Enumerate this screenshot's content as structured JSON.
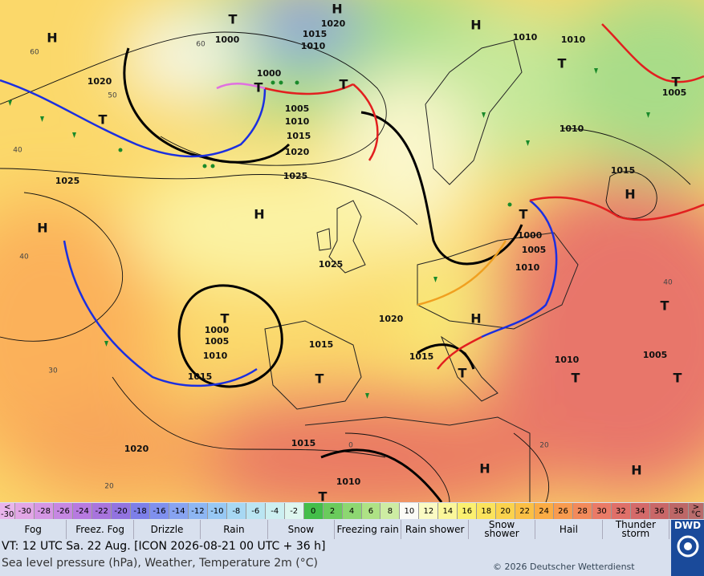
{
  "map": {
    "isobar_labels": [
      "1000",
      "1015",
      "1020",
      "1010",
      "1020",
      "1000",
      "1005",
      "1010",
      "1015",
      "1020",
      "1025",
      "1025",
      "1010",
      "1010",
      "1005",
      "1010",
      "1015",
      "1000",
      "1005",
      "1010",
      "1025",
      "1020",
      "1015",
      "1000",
      "1005",
      "1010",
      "1015",
      "1015",
      "1010",
      "1005",
      "1020",
      "1015",
      "1010"
    ],
    "high_centers": [
      "H",
      "H",
      "H",
      "H",
      "H",
      "H",
      "H",
      "H",
      "H"
    ],
    "low_centers": [
      "T",
      "T",
      "T",
      "T",
      "T",
      "T",
      "T",
      "T",
      "T",
      "T",
      "T",
      "T",
      "T",
      "T"
    ],
    "grid_labels": [
      "60",
      "50",
      "40",
      "40",
      "30",
      "20",
      "60",
      "40",
      "20",
      "0"
    ]
  },
  "legend": {
    "low_cell": [
      "<",
      "-30"
    ],
    "temperatures": [
      -30,
      -28,
      -26,
      -24,
      -22,
      -20,
      -18,
      -16,
      -14,
      -12,
      -10,
      -8,
      -6,
      -4,
      -2,
      0,
      2,
      4,
      6,
      8,
      10,
      12,
      14,
      16,
      18,
      20,
      22,
      24,
      26,
      28,
      30,
      32,
      34,
      36,
      38
    ],
    "colors": [
      "#e2a6e6",
      "#d596e4",
      "#c687e2",
      "#b77ae0",
      "#a874dd",
      "#9273e0",
      "#7d7fe8",
      "#7f90ee",
      "#87a3f1",
      "#8db6f3",
      "#97c8f4",
      "#a7d8f3",
      "#bae5f2",
      "#cceff1",
      "#def6ef",
      "#43be4a",
      "#6acb5c",
      "#8dd771",
      "#aee285",
      "#cdeca3",
      "#fbfbf6",
      "#fbfbc3",
      "#fbf79a",
      "#fbf06f",
      "#fbe35c",
      "#fbd24d",
      "#fbbf45",
      "#fbac44",
      "#f89b4f",
      "#f28a5b",
      "#ea7b67",
      "#df7069",
      "#d46a6a",
      "#c96768",
      "#bd6767"
    ],
    "low_color": "#e9b5ec",
    "high_cell": [
      ">",
      "°C"
    ],
    "high_color": "#b86b6b",
    "weather": [
      "Fog",
      "Freez. Fog",
      "Drizzle",
      "Rain",
      "Snow",
      "Freezing rain",
      "Rain shower",
      "Snow shower",
      "Hail",
      "Thunder storm"
    ]
  },
  "footer": {
    "valid_time": "VT: 12 UTC Sa.  22 Aug. [ICON 2026-08-21  00 UTC + 36 h]",
    "description": "Sea level pressure (hPa), Weather, Temperature 2m (°C)",
    "copyright": "© 2026 Deutscher Wetterdienst",
    "logo": "DWD"
  }
}
